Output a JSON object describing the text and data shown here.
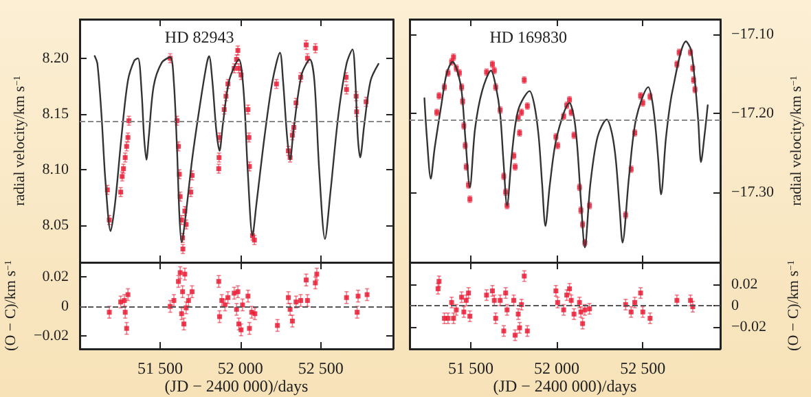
{
  "chart_data": [
    {
      "type": "scatter",
      "title": "HD 82943",
      "ylabel": "radial velocity/km s$^{−1}$",
      "tick_labels": "y",
      "xlim": [
        51000,
        52950
      ],
      "xticks": [
        51500,
        52000,
        52500
      ],
      "ylim": [
        8.017,
        8.235
      ],
      "yticks": [
        {
          "value": 8.05,
          "label": "8.05"
        },
        {
          "value": 8.1,
          "label": "8.10"
        },
        {
          "value": 8.15,
          "label": "8.15"
        },
        {
          "value": 8.2,
          "label": "8.20"
        }
      ],
      "ref_lines": [
        {
          "axis": "y",
          "value": 8.144,
          "line_style": "dashed",
          "color": "#888888"
        }
      ],
      "series": [
        {
          "type": "line",
          "color": "#333333",
          "x": [
            51093,
            51110,
            51135,
            51160,
            51192,
            51220,
            51260,
            51300,
            51340,
            51363,
            51385,
            51400,
            51415,
            51430,
            51460,
            51510,
            51563,
            51585,
            51605,
            51620,
            51634,
            51660,
            51700,
            51750,
            51790,
            51805,
            51825,
            51850,
            51870,
            51890,
            51930,
            51990,
            52020,
            52045,
            52075,
            52100,
            52150,
            52200,
            52246,
            52265,
            52290,
            52309,
            52330,
            52380,
            52432,
            52460,
            52490,
            52526,
            52560,
            52610,
            52660,
            52697,
            52715,
            52730,
            52745,
            52770,
            52810,
            52859
          ],
          "values": [
            8.202,
            8.195,
            8.15,
            8.09,
            8.045,
            8.07,
            8.13,
            8.18,
            8.198,
            8.2,
            8.17,
            8.13,
            8.109,
            8.13,
            8.175,
            8.196,
            8.201,
            8.18,
            8.12,
            8.06,
            8.035,
            8.06,
            8.11,
            8.16,
            8.195,
            8.202,
            8.18,
            8.135,
            8.117,
            8.14,
            8.18,
            8.199,
            8.17,
            8.1,
            8.041,
            8.07,
            8.13,
            8.18,
            8.205,
            8.18,
            8.13,
            8.109,
            8.135,
            8.185,
            8.199,
            8.18,
            8.1,
            8.038,
            8.08,
            8.15,
            8.195,
            8.208,
            8.18,
            8.13,
            8.111,
            8.14,
            8.18,
            8.195
          ]
        },
        {
          "color": "#e8102a",
          "marker": "square",
          "x": [
            51172,
            51184,
            51255,
            51264,
            51272,
            51283,
            51292,
            51300,
            51306,
            51563,
            51605,
            51614,
            51620,
            51625,
            51634,
            51640,
            51642,
            51654,
            51662,
            51691,
            51699,
            51870,
            51867,
            51865,
            51899,
            51910,
            51922,
            51961,
            51976,
            51984,
            51990,
            52004,
            52047,
            52053,
            52056,
            52075,
            52087,
            52224,
            52298,
            52309,
            52323,
            52332,
            52346,
            52375,
            52409,
            52417,
            52466,
            52657,
            52660,
            52720,
            52723,
            52782
          ],
          "values": [
            8.082,
            8.055,
            8.08,
            8.094,
            8.101,
            8.111,
            8.121,
            8.129,
            8.144,
            8.2,
            8.144,
            8.121,
            8.096,
            8.076,
            8.055,
            8.039,
            8.029,
            8.063,
            8.051,
            8.08,
            8.095,
            8.129,
            8.111,
            8.101,
            8.154,
            8.166,
            8.177,
            8.191,
            8.199,
            8.207,
            8.191,
            8.185,
            8.154,
            8.129,
            8.103,
            8.041,
            8.037,
            8.177,
            8.117,
            8.111,
            8.131,
            8.138,
            8.16,
            8.183,
            8.212,
            8.2,
            8.209,
            8.183,
            8.172,
            8.166,
            8.152,
            8.161
          ],
          "errors": [
            0.004,
            0.004,
            0.004,
            0.004,
            0.004,
            0.004,
            0.004,
            0.004,
            0.004,
            0.004,
            0.004,
            0.004,
            0.004,
            0.004,
            0.004,
            0.004,
            0.004,
            0.004,
            0.004,
            0.004,
            0.004,
            0.004,
            0.004,
            0.004,
            0.004,
            0.004,
            0.004,
            0.004,
            0.004,
            0.004,
            0.004,
            0.004,
            0.004,
            0.004,
            0.004,
            0.004,
            0.004,
            0.004,
            0.004,
            0.004,
            0.004,
            0.004,
            0.004,
            0.004,
            0.004,
            0.004,
            0.004,
            0.004,
            0.004,
            0.004,
            0.004,
            0.004
          ]
        }
      ]
    },
    {
      "type": "scatter",
      "title": "HD 169830",
      "y2label": "radial velocity/km s$^{−1}$",
      "tick_labels": "y",
      "xlim": [
        51145,
        52950
      ],
      "xticks": [
        51500,
        52000,
        52500
      ],
      "y2lim": [
        -17.389,
        -17.081
      ],
      "y2ticks": [
        {
          "value": -17.3,
          "label": "−17.30"
        },
        {
          "value": -17.2,
          "label": "−17.20"
        },
        {
          "value": -17.1,
          "label": "−17.10"
        }
      ],
      "ref_lines": [
        {
          "axis": "y2",
          "value": -17.209,
          "line_style": "dashed",
          "color": "#888888"
        }
      ],
      "series": [
        {
          "type": "line",
          "color": "#333333",
          "axis": "y2",
          "x": [
            51231,
            51245,
            51268,
            51290,
            51329,
            51360,
            51395,
            51420,
            51447,
            51470,
            51495,
            51525,
            51566,
            51618,
            51645,
            51671,
            51690,
            51711,
            51740,
            51776,
            51842,
            51870,
            51895,
            51915,
            51934,
            51960,
            52000,
            52074,
            52100,
            52119,
            52140,
            52163,
            52195,
            52237,
            52290,
            52320,
            52343,
            52365,
            52382,
            52420,
            52461,
            52532,
            52555,
            52574,
            52590,
            52606,
            52635,
            52672,
            52751,
            52780,
            52803,
            52822,
            52838,
            52860,
            52877
          ],
          "values": [
            -17.181,
            -17.23,
            -17.283,
            -17.245,
            -17.19,
            -17.15,
            -17.135,
            -17.145,
            -17.172,
            -17.235,
            -17.294,
            -17.22,
            -17.172,
            -17.146,
            -17.165,
            -17.201,
            -17.26,
            -17.317,
            -17.25,
            -17.196,
            -17.172,
            -17.19,
            -17.23,
            -17.29,
            -17.343,
            -17.29,
            -17.23,
            -17.187,
            -17.205,
            -17.242,
            -17.31,
            -17.37,
            -17.29,
            -17.23,
            -17.208,
            -17.225,
            -17.259,
            -17.32,
            -17.364,
            -17.28,
            -17.207,
            -17.167,
            -17.185,
            -17.219,
            -17.26,
            -17.303,
            -17.23,
            -17.172,
            -17.109,
            -17.12,
            -17.161,
            -17.21,
            -17.262,
            -17.225,
            -17.19
          ]
        },
        {
          "color": "#e8102a",
          "marker": "square",
          "axis": "y2",
          "x": [
            51303,
            51316,
            51347,
            51368,
            51389,
            51400,
            51416,
            51434,
            51447,
            51453,
            51460,
            51468,
            51474,
            51487,
            51495,
            51592,
            51626,
            51637,
            51645,
            51671,
            51692,
            51703,
            51711,
            51750,
            51758,
            51776,
            51784,
            51795,
            51811,
            51829,
            51995,
            52005,
            52040,
            52058,
            52074,
            52084,
            52100,
            52132,
            52140,
            52150,
            52163,
            52190,
            52400,
            52432,
            52453,
            52487,
            52500,
            52542,
            52698,
            52711,
            52777,
            52790,
            52795,
            52803
          ],
          "values": [
            -17.199,
            -17.178,
            -17.167,
            -17.149,
            -17.135,
            -17.129,
            -17.143,
            -17.149,
            -17.167,
            -17.185,
            -17.216,
            -17.241,
            -17.268,
            -17.291,
            -17.309,
            -17.148,
            -17.138,
            -17.146,
            -17.167,
            -17.196,
            -17.28,
            -17.3,
            -17.317,
            -17.254,
            -17.268,
            -17.206,
            -17.225,
            -17.199,
            -17.158,
            -17.191,
            -17.23,
            -17.241,
            -17.204,
            -17.19,
            -17.183,
            -17.199,
            -17.228,
            -17.294,
            -17.323,
            -17.341,
            -17.364,
            -17.317,
            -17.329,
            -17.271,
            -17.225,
            -17.178,
            -17.187,
            -17.179,
            -17.138,
            -17.123,
            -17.123,
            -17.143,
            -17.158,
            -17.17
          ],
          "errors": [
            0.004,
            0.004,
            0.004,
            0.004,
            0.004,
            0.004,
            0.004,
            0.004,
            0.004,
            0.004,
            0.004,
            0.004,
            0.004,
            0.004,
            0.004,
            0.004,
            0.004,
            0.004,
            0.004,
            0.004,
            0.004,
            0.004,
            0.004,
            0.004,
            0.004,
            0.004,
            0.004,
            0.004,
            0.004,
            0.004,
            0.004,
            0.004,
            0.004,
            0.004,
            0.004,
            0.004,
            0.004,
            0.004,
            0.004,
            0.004,
            0.004,
            0.004,
            0.004,
            0.004,
            0.004,
            0.004,
            0.004,
            0.004,
            0.004,
            0.004,
            0.004,
            0.004,
            0.004,
            0.004
          ]
        }
      ]
    },
    {
      "type": "scatter",
      "xlabel": "(JD − 2400 000)/days",
      "ylabel": "(O − C)/km s$^{−1}$",
      "xlim": [
        51000,
        52950
      ],
      "xticks": [
        {
          "value": 51500,
          "label": "51 500"
        },
        {
          "value": 52000,
          "label": "52 000"
        },
        {
          "value": 52500,
          "label": "52 500"
        }
      ],
      "ylim": [
        -0.029,
        0.03
      ],
      "yticks": [
        {
          "value": -0.02,
          "label": "−0.02"
        },
        0,
        0.02
      ],
      "ref_lines": [
        {
          "axis": "y",
          "value": 0,
          "line_style": "dashed",
          "color": "#555555"
        }
      ],
      "series": [
        {
          "color": "#e8102a",
          "marker": "square",
          "x": [
            51184,
            51255,
            51278,
            51283,
            51292,
            51300,
            51563,
            51586,
            51614,
            51625,
            51634,
            51640,
            51648,
            51654,
            51662,
            51677,
            51699,
            51865,
            51870,
            51884,
            51904,
            51922,
            51961,
            51976,
            51984,
            51990,
            52004,
            52013,
            52047,
            52056,
            52070,
            52090,
            52230,
            52298,
            52309,
            52323,
            52346,
            52375,
            52409,
            52417,
            52466,
            52475,
            52660,
            52726,
            52732,
            52788
          ],
          "values": [
            -0.004,
            0.003,
            0.004,
            -0.004,
            -0.015,
            0.008,
            0,
            0.004,
            0.017,
            0.023,
            -0.005,
            0.01,
            -0.012,
            0.022,
            -0.001,
            0.004,
            0.01,
            0.017,
            -0.007,
            0.004,
            0.001,
            0.006,
            0.009,
            -0.002,
            0.01,
            -0.012,
            -0.016,
            0.001,
            0.007,
            -0.015,
            -0.004,
            -0.005,
            -0.013,
            0.006,
            -0.002,
            -0.01,
            0.003,
            0.004,
            0.018,
            0.004,
            0.016,
            0.022,
            0.006,
            -0.004,
            0.007,
            0.008
          ],
          "errors": [
            0.004,
            0.004,
            0.004,
            0.004,
            0.004,
            0.004,
            0.004,
            0.004,
            0.004,
            0.004,
            0.004,
            0.004,
            0.004,
            0.004,
            0.004,
            0.004,
            0.004,
            0.004,
            0.004,
            0.004,
            0.004,
            0.004,
            0.004,
            0.004,
            0.004,
            0.004,
            0.004,
            0.004,
            0.004,
            0.004,
            0.004,
            0.004,
            0.004,
            0.004,
            0.004,
            0.004,
            0.004,
            0.004,
            0.004,
            0.004,
            0.004,
            0.004,
            0.004,
            0.004,
            0.004,
            0.004
          ]
        }
      ]
    },
    {
      "type": "scatter",
      "xlabel": "(JD − 2400 000)/days",
      "y2label": "(O − C)/km s$^{−1}$",
      "xlim": [
        51145,
        52950
      ],
      "xticks": [
        {
          "value": 51500,
          "label": "51 500"
        },
        {
          "value": 52000,
          "label": "52 000"
        },
        {
          "value": 52500,
          "label": "52 500"
        }
      ],
      "y2lim": [
        -0.041,
        0.041
      ],
      "y2ticks": [
        {
          "value": -0.02,
          "label": "−0.02"
        },
        0,
        0.02
      ],
      "ref_lines": [
        {
          "axis": "y2",
          "value": 0,
          "line_style": "dashed",
          "color": "#555555"
        }
      ],
      "series": [
        {
          "color": "#e8102a",
          "marker": "square",
          "axis": "y2",
          "x": [
            51310,
            51316,
            51347,
            51368,
            51389,
            51400,
            51416,
            51447,
            51460,
            51474,
            51487,
            51495,
            51592,
            51626,
            51637,
            51645,
            51671,
            51692,
            51703,
            51711,
            51750,
            51758,
            51776,
            51784,
            51795,
            51811,
            51829,
            51995,
            52005,
            52040,
            52058,
            52074,
            52084,
            52100,
            52132,
            52140,
            52150,
            52163,
            52190,
            52400,
            52432,
            52453,
            52487,
            52500,
            52542,
            52698,
            52777,
            52790
          ],
          "values": [
            0.016,
            0.023,
            -0.012,
            -0.012,
            0.003,
            -0.012,
            -0.004,
            0.008,
            -0.006,
            0.005,
            0.012,
            -0.01,
            0.01,
            0.014,
            0.005,
            -0.012,
            0.005,
            -0.024,
            0.012,
            -0.004,
            0.005,
            -0.028,
            -0.008,
            -0.021,
            0.001,
            0.028,
            -0.024,
            0.014,
            0.003,
            -0.004,
            0.01,
            0.016,
            0.005,
            -0.008,
            0.003,
            -0.006,
            -0.017,
            -0.004,
            -0.003,
            0.001,
            -0.006,
            0.003,
            0.012,
            -0.006,
            -0.012,
            0.005,
            0.005,
            -0.001
          ],
          "errors": [
            0.005,
            0.005,
            0.005,
            0.005,
            0.005,
            0.005,
            0.005,
            0.005,
            0.005,
            0.005,
            0.005,
            0.005,
            0.005,
            0.005,
            0.005,
            0.005,
            0.005,
            0.005,
            0.005,
            0.005,
            0.005,
            0.005,
            0.005,
            0.005,
            0.005,
            0.005,
            0.005,
            0.005,
            0.005,
            0.005,
            0.005,
            0.005,
            0.005,
            0.005,
            0.005,
            0.005,
            0.005,
            0.005,
            0.005,
            0.005,
            0.005,
            0.005,
            0.005,
            0.005,
            0.005,
            0.005,
            0.005,
            0.005
          ]
        }
      ]
    }
  ]
}
